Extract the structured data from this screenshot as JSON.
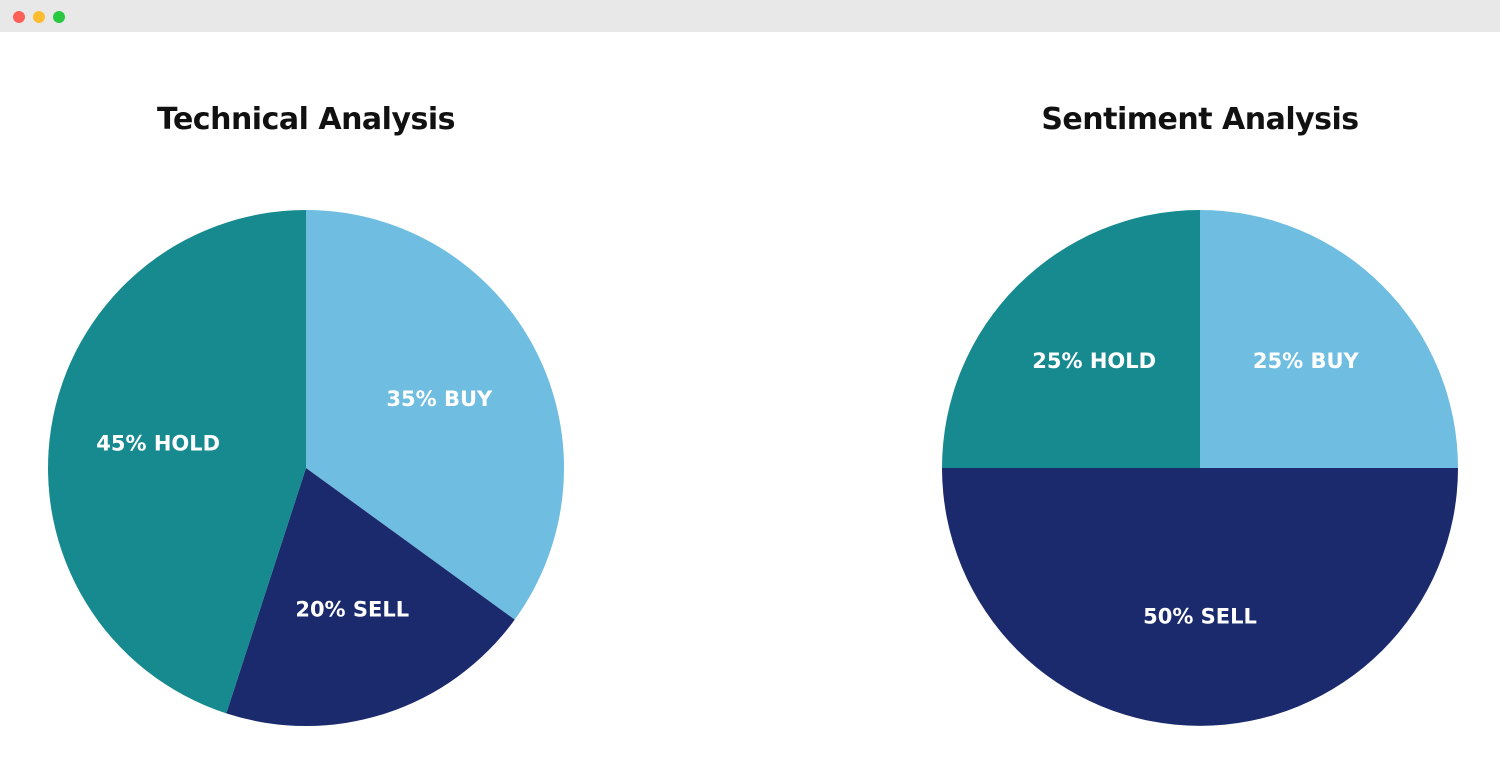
{
  "window": {
    "controls": [
      "close",
      "minimize",
      "maximize"
    ]
  },
  "chart_data": [
    {
      "type": "pie",
      "title": "Technical Analysis",
      "slices": [
        {
          "category": "BUY",
          "label": "35% BUY",
          "value": 35,
          "color": "#6fbde0"
        },
        {
          "category": "SELL",
          "label": "20% SELL",
          "value": 20,
          "color": "#1a2a6c"
        },
        {
          "category": "HOLD",
          "label": "45% HOLD",
          "value": 45,
          "color": "#168a8f"
        }
      ]
    },
    {
      "type": "pie",
      "title": "Sentiment Analysis",
      "slices": [
        {
          "category": "BUY",
          "label": "25% BUY",
          "value": 25,
          "color": "#6fbde0"
        },
        {
          "category": "SELL",
          "label": "50% SELL",
          "value": 50,
          "color": "#1a2a6c"
        },
        {
          "category": "HOLD",
          "label": "25% HOLD",
          "value": 25,
          "color": "#168a8f"
        }
      ]
    }
  ]
}
